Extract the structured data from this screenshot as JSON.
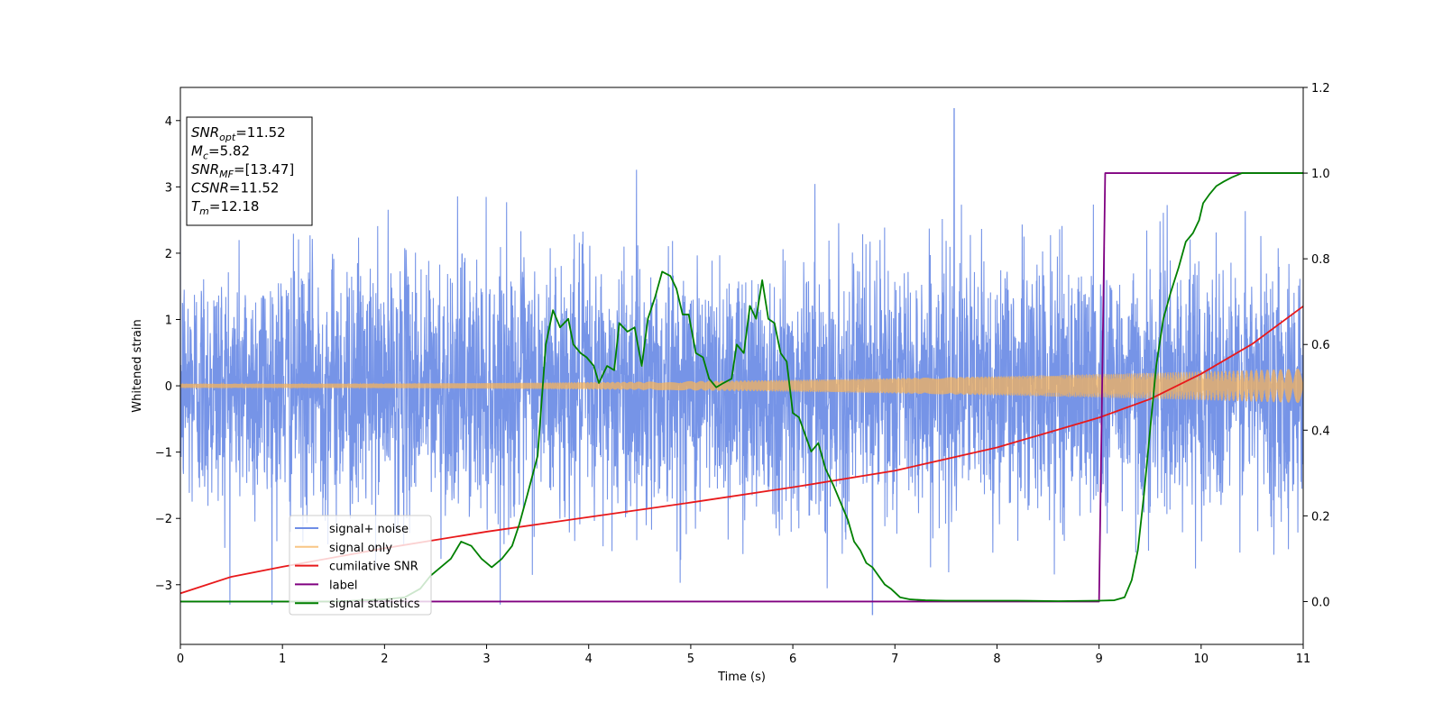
{
  "chart_data": {
    "type": "line",
    "title": "",
    "xlabel": "Time (s)",
    "ylabel": "Whitened strain",
    "xlim": [
      0,
      11
    ],
    "ylim": [
      -3.9,
      4.5
    ],
    "y2lim": [
      -0.1,
      1.2
    ],
    "x_ticks": [
      0,
      1,
      2,
      3,
      4,
      5,
      6,
      7,
      8,
      9,
      10,
      11
    ],
    "x_tick_labels": [
      "0",
      "1",
      "2",
      "3",
      "4",
      "5",
      "6",
      "7",
      "8",
      "9",
      "10",
      "11"
    ],
    "y_ticks": [
      -3,
      -2,
      -1,
      0,
      1,
      2,
      3,
      4
    ],
    "y_tick_labels": [
      "−3",
      "−2",
      "−1",
      "0",
      "1",
      "2",
      "3",
      "4"
    ],
    "y2_ticks": [
      0.0,
      0.2,
      0.4,
      0.6,
      0.8,
      1.0,
      1.2
    ],
    "y2_tick_labels": [
      "0.0",
      "0.2",
      "0.4",
      "0.6",
      "0.8",
      "1.0",
      "1.2"
    ],
    "grid": false,
    "legend_position": "lower-left",
    "annotation": {
      "lines": [
        {
          "var": "SNR",
          "sub": "opt",
          "value": "=11.52"
        },
        {
          "var": "M",
          "sub": "c",
          "value": "=5.82"
        },
        {
          "var": "SNR",
          "sub": "MF",
          "value": "=[13.47]"
        },
        {
          "var": "CSNR",
          "sub": "",
          "value": "=11.52"
        },
        {
          "var": "T",
          "sub": "m",
          "value": "=12.18"
        }
      ]
    },
    "series": [
      {
        "name": "signal+ noise",
        "color": "#6f8ee6",
        "axis": "left",
        "style": "noise",
        "x_range": [
          0,
          11
        ],
        "std": 0.95,
        "peak_max": 4.18,
        "peak_max_x": 7.58,
        "peak_min": -3.45,
        "peak_min_x": 6.78
      },
      {
        "name": "signal only",
        "color": "#f5b35c",
        "axis": "left",
        "style": "chirp",
        "x_range": [
          0,
          11
        ],
        "amplitude_start": 0.03,
        "amplitude_end": 0.26
      },
      {
        "name": "cumilative SNR",
        "color": "#e8191b",
        "axis": "left",
        "x": [
          0,
          0.5,
          1,
          2,
          3,
          4,
          5,
          6,
          7,
          8,
          9,
          9.5,
          10,
          10.5,
          11
        ],
        "y": [
          -3.13,
          -2.88,
          -2.73,
          -2.45,
          -2.2,
          -1.98,
          -1.76,
          -1.53,
          -1.28,
          -0.93,
          -0.48,
          -0.2,
          0.18,
          0.63,
          1.2
        ]
      },
      {
        "name": "label",
        "color": "#800080",
        "axis": "right",
        "x": [
          0,
          9.0,
          9.06,
          11
        ],
        "y": [
          0.0,
          0.0,
          1.0,
          1.0
        ]
      },
      {
        "name": "signal statistics",
        "color": "#008000",
        "axis": "right",
        "x": [
          0,
          0.5,
          1,
          1.5,
          2,
          2.2,
          2.35,
          2.45,
          2.55,
          2.65,
          2.75,
          2.85,
          2.95,
          3.05,
          3.15,
          3.25,
          3.32,
          3.4,
          3.5,
          3.58,
          3.65,
          3.72,
          3.8,
          3.85,
          3.92,
          3.98,
          4.05,
          4.1,
          4.18,
          4.25,
          4.3,
          4.38,
          4.45,
          4.52,
          4.58,
          4.65,
          4.72,
          4.8,
          4.86,
          4.92,
          4.98,
          5.05,
          5.12,
          5.18,
          5.25,
          5.32,
          5.4,
          5.45,
          5.52,
          5.58,
          5.64,
          5.7,
          5.76,
          5.82,
          5.88,
          5.94,
          6.0,
          6.06,
          6.12,
          6.18,
          6.25,
          6.32,
          6.4,
          6.47,
          6.54,
          6.6,
          6.66,
          6.72,
          6.78,
          6.84,
          6.9,
          6.96,
          7.05,
          7.15,
          7.3,
          7.5,
          7.8,
          8.2,
          8.6,
          9.0,
          9.15,
          9.25,
          9.32,
          9.38,
          9.44,
          9.5,
          9.56,
          9.63,
          9.7,
          9.78,
          9.85,
          9.92,
          9.98,
          10.02,
          10.08,
          10.15,
          10.22,
          10.3,
          10.4,
          10.5,
          10.65,
          10.8,
          11.0
        ],
        "y": [
          0.0,
          0.0,
          0.0,
          0.0,
          0.005,
          0.01,
          0.03,
          0.06,
          0.08,
          0.1,
          0.14,
          0.13,
          0.1,
          0.08,
          0.1,
          0.13,
          0.18,
          0.25,
          0.34,
          0.6,
          0.68,
          0.64,
          0.66,
          0.6,
          0.58,
          0.57,
          0.55,
          0.51,
          0.55,
          0.54,
          0.65,
          0.63,
          0.64,
          0.55,
          0.66,
          0.71,
          0.77,
          0.76,
          0.73,
          0.67,
          0.67,
          0.58,
          0.57,
          0.52,
          0.5,
          0.51,
          0.52,
          0.6,
          0.58,
          0.69,
          0.66,
          0.75,
          0.66,
          0.65,
          0.58,
          0.56,
          0.44,
          0.43,
          0.39,
          0.35,
          0.37,
          0.31,
          0.27,
          0.23,
          0.19,
          0.14,
          0.12,
          0.09,
          0.08,
          0.06,
          0.04,
          0.03,
          0.01,
          0.005,
          0.003,
          0.002,
          0.002,
          0.002,
          0.001,
          0.002,
          0.003,
          0.01,
          0.05,
          0.12,
          0.25,
          0.4,
          0.55,
          0.66,
          0.72,
          0.78,
          0.84,
          0.86,
          0.89,
          0.93,
          0.95,
          0.97,
          0.98,
          0.99,
          1.0,
          1.0,
          1.0,
          1.0,
          1.0
        ]
      }
    ]
  }
}
